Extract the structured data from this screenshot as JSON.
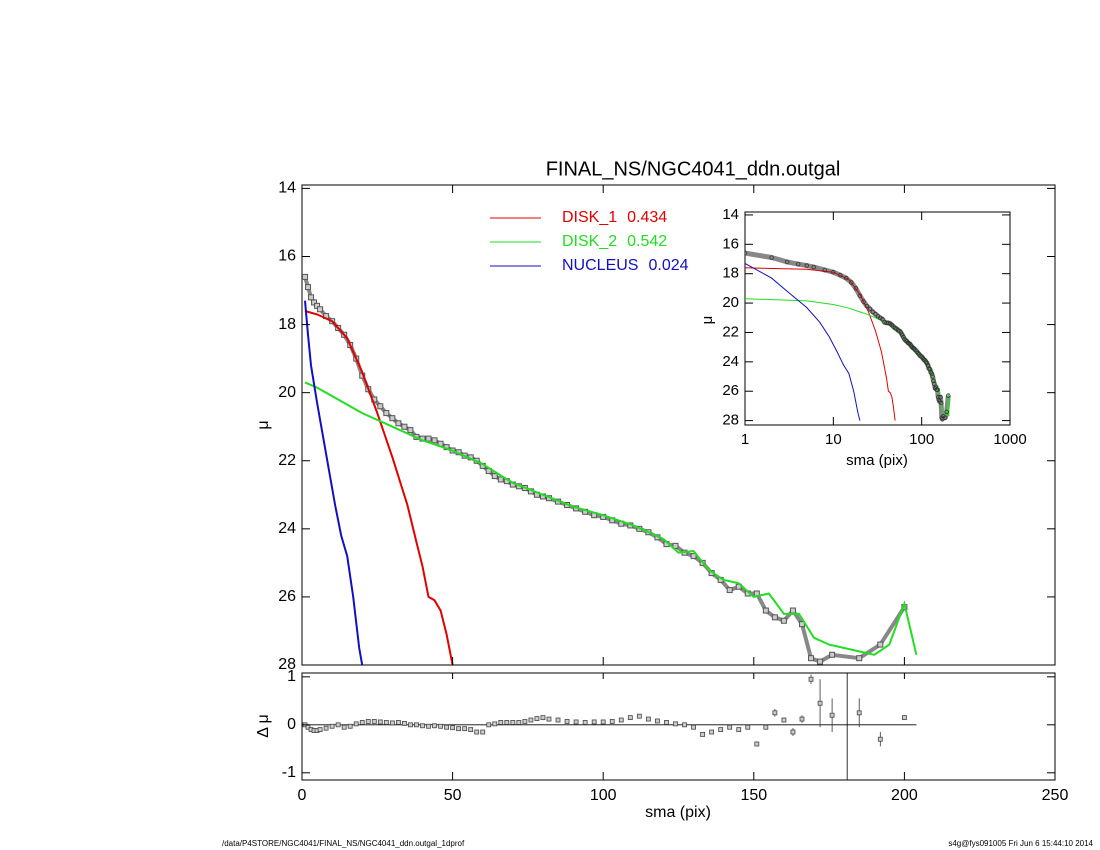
{
  "chart_data": [
    {
      "type": "line",
      "title": "FINAL_NS/NGC4041_ddn.outgal",
      "ylabel": "μ",
      "y_inverted": true,
      "xlim": [
        0,
        250
      ],
      "ylim": [
        13.9,
        28
      ],
      "xticks": [
        0,
        50,
        100,
        150,
        200,
        250
      ],
      "yticks": [
        14,
        16,
        18,
        20,
        22,
        24,
        26,
        28
      ],
      "data": {
        "color": "#555555",
        "x": [
          1,
          2,
          3,
          4,
          5,
          6,
          8,
          10,
          12,
          14,
          16,
          18,
          20,
          22,
          24,
          26,
          28,
          30,
          32,
          34,
          36,
          38,
          40,
          42,
          44,
          46,
          48,
          50,
          52,
          54,
          56,
          58,
          60,
          62,
          64,
          66,
          68,
          70,
          72,
          74,
          76,
          78,
          80,
          82,
          85,
          88,
          91,
          94,
          97,
          100,
          103,
          106,
          109,
          112,
          115,
          118,
          121,
          124,
          127,
          130,
          133,
          136,
          139,
          142,
          145,
          148,
          151,
          154,
          157,
          160,
          163,
          166,
          169,
          172,
          176,
          185,
          192,
          200
        ],
        "values": [
          16.6,
          16.9,
          17.2,
          17.35,
          17.45,
          17.55,
          17.75,
          17.9,
          18.1,
          18.3,
          18.6,
          19.0,
          19.5,
          19.9,
          20.2,
          20.4,
          20.6,
          20.75,
          20.9,
          21.0,
          21.1,
          21.3,
          21.35,
          21.35,
          21.4,
          21.5,
          21.6,
          21.7,
          21.75,
          21.85,
          21.9,
          22.0,
          22.15,
          22.3,
          22.45,
          22.55,
          22.6,
          22.7,
          22.75,
          22.8,
          22.9,
          23.0,
          23.05,
          23.1,
          23.2,
          23.3,
          23.4,
          23.5,
          23.6,
          23.65,
          23.75,
          23.85,
          23.9,
          24.0,
          24.1,
          24.25,
          24.45,
          24.5,
          24.7,
          24.8,
          25.0,
          25.3,
          25.5,
          25.8,
          25.7,
          25.9,
          25.9,
          26.4,
          26.6,
          26.7,
          26.4,
          26.8,
          27.8,
          27.9,
          27.7,
          27.8,
          27.4,
          26.3
        ]
      },
      "series": [
        {
          "name": "DISK_1",
          "value": 0.434,
          "color": "#e00000",
          "x": [
            1,
            5,
            10,
            15,
            20,
            25,
            30,
            35,
            38,
            40,
            42,
            44,
            46,
            48,
            50
          ],
          "values": [
            17.6,
            17.7,
            17.9,
            18.4,
            19.4,
            20.6,
            21.9,
            23.3,
            24.4,
            25.1,
            26.0,
            26.1,
            26.4,
            27.1,
            28.0
          ]
        },
        {
          "name": "DISK_2",
          "value": 0.542,
          "color": "#22dd22",
          "x": [
            1,
            5,
            10,
            15,
            20,
            25,
            30,
            35,
            40,
            50,
            60,
            70,
            80,
            90,
            100,
            110,
            120,
            125,
            130,
            135,
            140,
            145,
            150,
            155,
            160,
            165,
            170,
            175,
            180,
            185,
            190,
            195,
            200,
            204
          ],
          "values": [
            19.7,
            19.85,
            20.1,
            20.35,
            20.6,
            20.8,
            21.0,
            21.2,
            21.4,
            21.7,
            22.1,
            22.65,
            23.0,
            23.35,
            23.6,
            23.9,
            24.3,
            24.7,
            24.65,
            25.2,
            25.5,
            25.6,
            26.0,
            25.9,
            26.5,
            26.5,
            27.2,
            27.4,
            27.5,
            27.6,
            27.7,
            27.4,
            26.2,
            27.7
          ]
        },
        {
          "name": "NUCLEUS",
          "value": 0.024,
          "color": "#1010c0",
          "x": [
            1,
            2,
            3,
            5,
            7,
            9,
            11,
            13,
            15,
            17,
            19,
            20
          ],
          "values": [
            17.3,
            18.3,
            19.2,
            20.3,
            21.3,
            22.3,
            23.3,
            24.2,
            24.8,
            26.0,
            27.5,
            28.0
          ]
        }
      ]
    },
    {
      "type": "scatter",
      "xlabel": "sma (pix)",
      "ylabel": "Δ μ",
      "ylim": [
        -1.15,
        1.08
      ],
      "yticks": [
        -1,
        0,
        1
      ],
      "hline": 0,
      "vline": 181,
      "values": [
        0.0,
        -0.05,
        -0.1,
        -0.12,
        -0.12,
        -0.1,
        -0.07,
        -0.03,
        0.0,
        -0.05,
        -0.03,
        0.02,
        0.05,
        0.07,
        0.07,
        0.06,
        0.05,
        0.04,
        0.05,
        0.03,
        0.0,
        0.0,
        -0.02,
        -0.03,
        -0.02,
        -0.03,
        -0.05,
        -0.06,
        -0.08,
        -0.08,
        -0.1,
        -0.15,
        -0.15,
        0.0,
        0.02,
        0.05,
        0.05,
        0.05,
        0.05,
        0.07,
        0.1,
        0.13,
        0.15,
        0.12,
        0.1,
        0.07,
        0.06,
        0.05,
        0.06,
        0.06,
        0.07,
        0.1,
        0.15,
        0.18,
        0.12,
        0.08,
        0.05,
        0.02,
        0.0,
        -0.05,
        -0.2,
        -0.15,
        -0.1,
        -0.05,
        -0.1,
        -0.05,
        -0.4,
        -0.05,
        0.25,
        0.1,
        -0.15,
        0.12,
        0.95,
        0.45,
        0.2,
        0.25,
        -0.3,
        0.15
      ],
      "errors": [
        0.02,
        0.02,
        0.02,
        0.02,
        0.02,
        0.02,
        0.02,
        0.02,
        0.02,
        0.02,
        0.02,
        0.02,
        0.02,
        0.02,
        0.02,
        0.02,
        0.02,
        0.02,
        0.02,
        0.02,
        0.02,
        0.02,
        0.02,
        0.02,
        0.02,
        0.02,
        0.02,
        0.02,
        0.02,
        0.02,
        0.02,
        0.02,
        0.02,
        0.02,
        0.02,
        0.02,
        0.02,
        0.02,
        0.02,
        0.02,
        0.02,
        0.02,
        0.02,
        0.02,
        0.02,
        0.02,
        0.02,
        0.02,
        0.02,
        0.02,
        0.02,
        0.02,
        0.02,
        0.02,
        0.02,
        0.02,
        0.02,
        0.02,
        0.02,
        0.02,
        0.02,
        0.02,
        0.02,
        0.02,
        0.02,
        0.02,
        0.05,
        0.05,
        0.08,
        0.05,
        0.08,
        0.08,
        0.1,
        0.5,
        0.35,
        0.3,
        0.15,
        0.05
      ]
    },
    {
      "type": "line",
      "xlabel": "sma (pix)",
      "ylabel": "μ",
      "log_x": true,
      "y_inverted": true,
      "xlim": [
        1,
        1000
      ],
      "ylim": [
        13.8,
        28.3
      ],
      "xticks": [
        1,
        10,
        100,
        1000
      ],
      "yticks": [
        14,
        16,
        18,
        20,
        22,
        24,
        26,
        28
      ]
    }
  ],
  "footer": {
    "left": "/data/P4STORE/NGC4041/FINAL_NS/NGC4041_ddn.outgal_1dprof",
    "right": "s4g@fys091005  Fri Jun  6 15:44:10 2014"
  }
}
